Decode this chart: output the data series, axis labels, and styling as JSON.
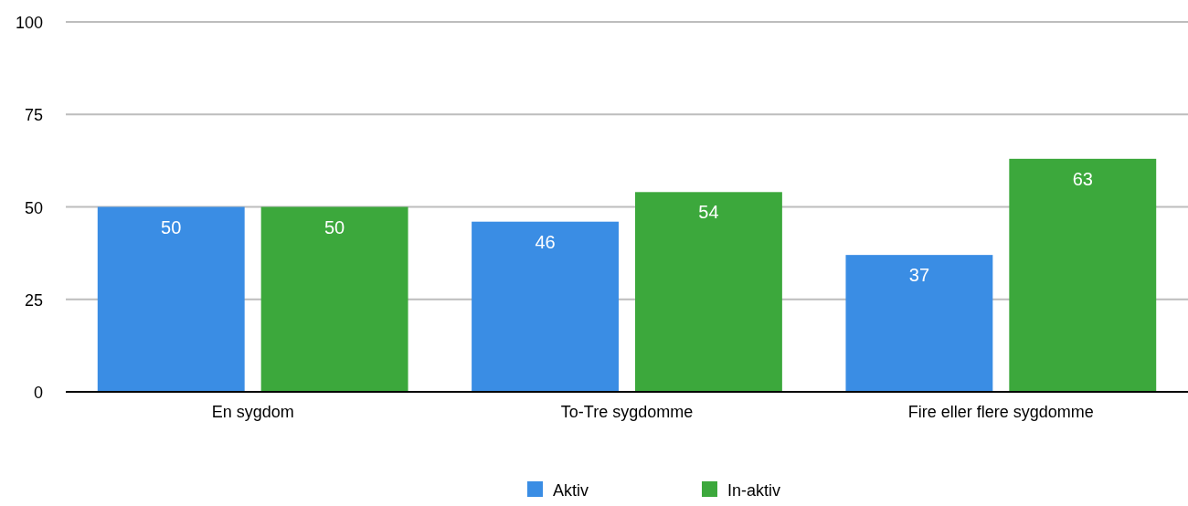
{
  "chart_data": {
    "type": "bar",
    "categories": [
      "En sygdom",
      "To-Tre sygdomme",
      "Fire eller flere sygdomme"
    ],
    "series": [
      {
        "name": "Aktiv",
        "color": "#3a8de4",
        "values": [
          50,
          46,
          37
        ]
      },
      {
        "name": "In-aktiv",
        "color": "#3ca83c",
        "values": [
          50,
          54,
          63
        ]
      }
    ],
    "ylim": [
      0,
      100
    ],
    "yticks": [
      0,
      25,
      50,
      75,
      100
    ],
    "grid": "y",
    "legend": "bottom",
    "data_labels": true
  }
}
